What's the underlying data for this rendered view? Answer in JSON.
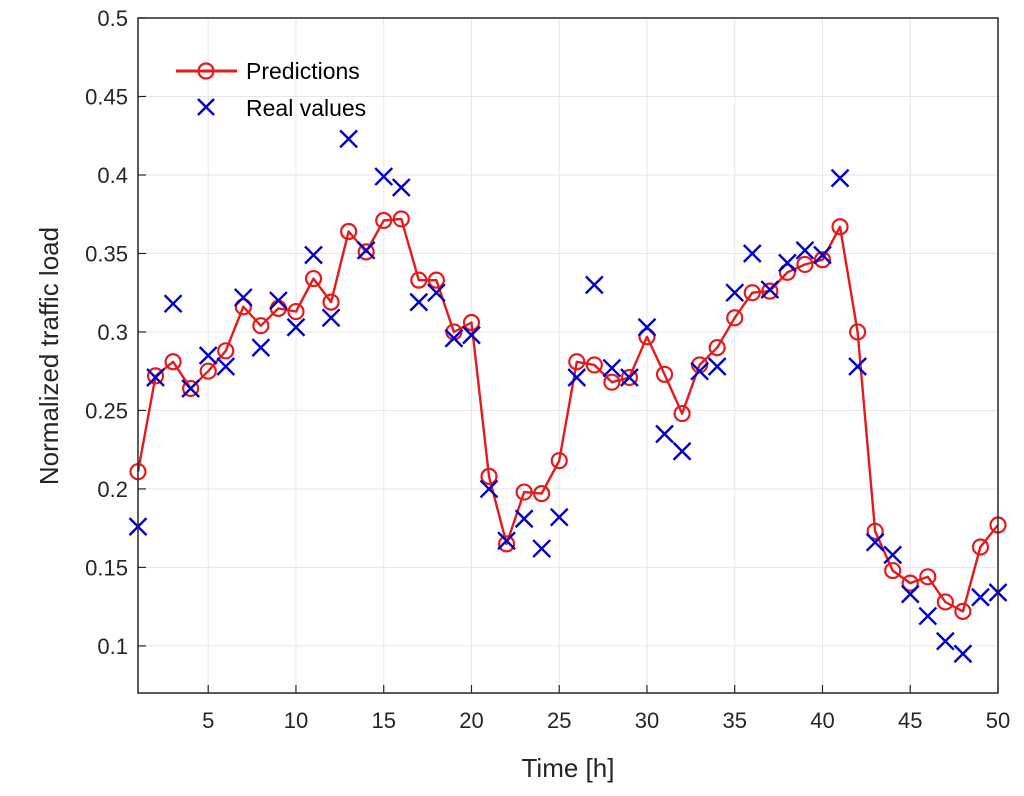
{
  "chart_data": {
    "type": "line",
    "title": "",
    "xlabel": "Time [h]",
    "ylabel": "Normalized traffic load",
    "xlim": [
      1,
      50
    ],
    "ylim": [
      0.07,
      0.5
    ],
    "xticks": [
      5,
      10,
      15,
      20,
      25,
      30,
      35,
      40,
      45,
      50
    ],
    "yticks": [
      0.1,
      0.15,
      0.2,
      0.25,
      0.3,
      0.35,
      0.4,
      0.45,
      0.5
    ],
    "grid": true,
    "legend_position": "top-left",
    "x": [
      1,
      2,
      3,
      4,
      5,
      6,
      7,
      8,
      9,
      10,
      11,
      12,
      13,
      14,
      15,
      16,
      17,
      18,
      19,
      20,
      21,
      22,
      23,
      24,
      25,
      26,
      27,
      28,
      29,
      30,
      31,
      32,
      33,
      34,
      35,
      36,
      37,
      38,
      39,
      40,
      41,
      42,
      43,
      44,
      45,
      46,
      47,
      48,
      49,
      50
    ],
    "series": [
      {
        "name": "Predictions",
        "style": "line-circle",
        "color": "#e41a1c",
        "values": [
          0.211,
          0.272,
          0.281,
          0.264,
          0.275,
          0.288,
          0.316,
          0.304,
          0.315,
          0.313,
          0.334,
          0.319,
          0.364,
          0.351,
          0.371,
          0.372,
          0.333,
          0.333,
          0.3,
          0.306,
          0.208,
          0.165,
          0.198,
          0.197,
          0.218,
          0.281,
          0.279,
          0.268,
          0.271,
          0.297,
          0.273,
          0.248,
          0.279,
          0.29,
          0.309,
          0.325,
          0.326,
          0.338,
          0.343,
          0.346,
          0.367,
          0.3,
          0.173,
          0.148,
          0.14,
          0.144,
          0.128,
          0.122,
          0.163,
          0.177
        ]
      },
      {
        "name": "Real values",
        "style": "marker-x",
        "color": "#0000cc",
        "values": [
          0.176,
          0.271,
          0.318,
          0.264,
          0.285,
          0.278,
          0.322,
          0.29,
          0.32,
          0.303,
          0.349,
          0.309,
          0.423,
          0.352,
          0.399,
          0.392,
          0.319,
          0.325,
          0.296,
          0.298,
          0.2,
          0.167,
          0.181,
          0.162,
          0.182,
          0.271,
          0.33,
          0.277,
          0.271,
          0.303,
          0.235,
          0.224,
          0.275,
          0.278,
          0.325,
          0.35,
          0.327,
          0.344,
          0.352,
          0.349,
          0.398,
          0.278,
          0.166,
          0.158,
          0.133,
          0.119,
          0.103,
          0.095,
          0.131,
          0.134
        ]
      }
    ]
  }
}
